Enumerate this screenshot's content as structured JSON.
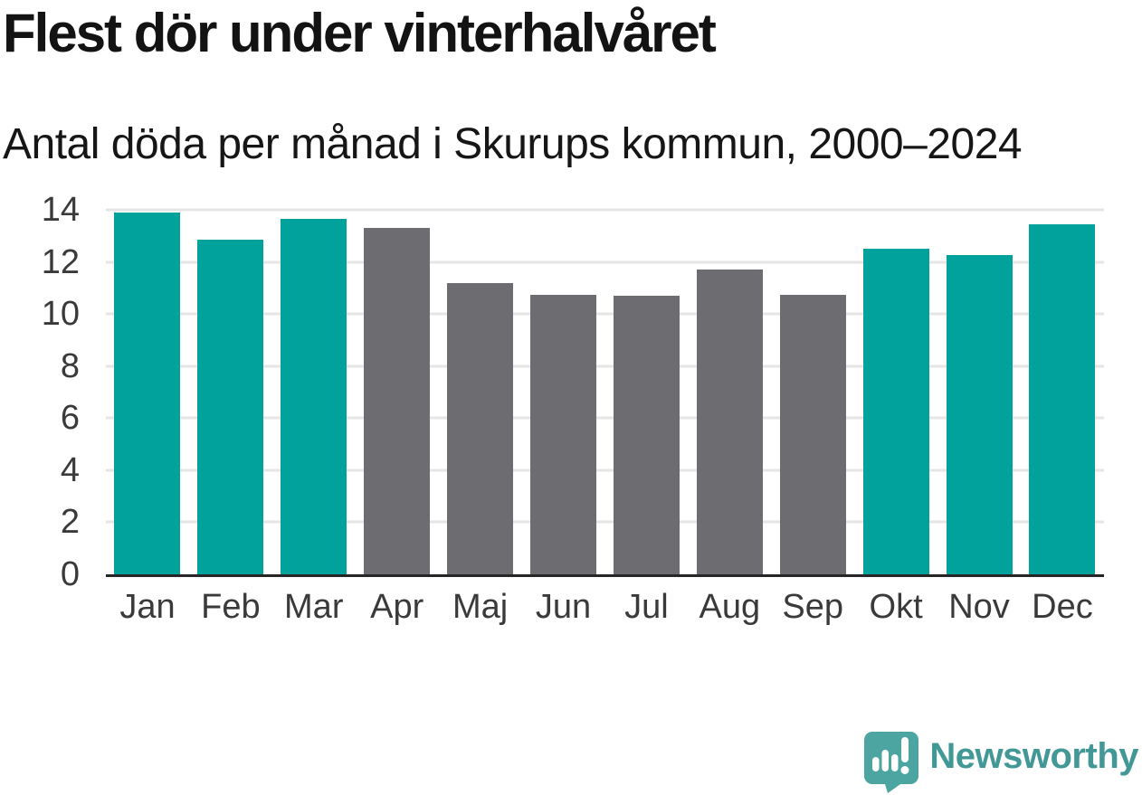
{
  "header": {
    "title": "Flest dör under vinterhalvåret",
    "subtitle": "Antal döda per månad i Skurups kommun, 2000–2024"
  },
  "chart_data": {
    "type": "bar",
    "title": "Flest dör under vinterhalvåret",
    "subtitle": "Antal döda per månad i Skurups kommun, 2000–2024",
    "categories": [
      "Jan",
      "Feb",
      "Mar",
      "Apr",
      "Maj",
      "Jun",
      "Jul",
      "Aug",
      "Sep",
      "Okt",
      "Nov",
      "Dec"
    ],
    "values": [
      13.9,
      12.85,
      13.65,
      13.3,
      11.2,
      10.75,
      10.7,
      11.7,
      10.75,
      12.5,
      12.25,
      13.45
    ],
    "bar_colors": [
      "winter",
      "winter",
      "winter",
      "summer",
      "summer",
      "summer",
      "summer",
      "summer",
      "summer",
      "winter",
      "winter",
      "winter"
    ],
    "palette": {
      "winter": "#00a29b",
      "summer": "#6c6c71"
    },
    "xlabel": "",
    "ylabel": "",
    "ylim": [
      0,
      14
    ],
    "yticks": [
      0,
      2,
      4,
      6,
      8,
      10,
      12,
      14
    ],
    "grid": "horizontal",
    "legend": "none",
    "axis_color": "#262626",
    "gridline_color": "#e5e5e6"
  },
  "footer": {
    "brand": "Newsworthy",
    "brand_color": "#429896",
    "logo_bubble_color": "#4ca5a1",
    "logo_icon": "newsworthy-speech-bubble-bar-chart-icon"
  }
}
